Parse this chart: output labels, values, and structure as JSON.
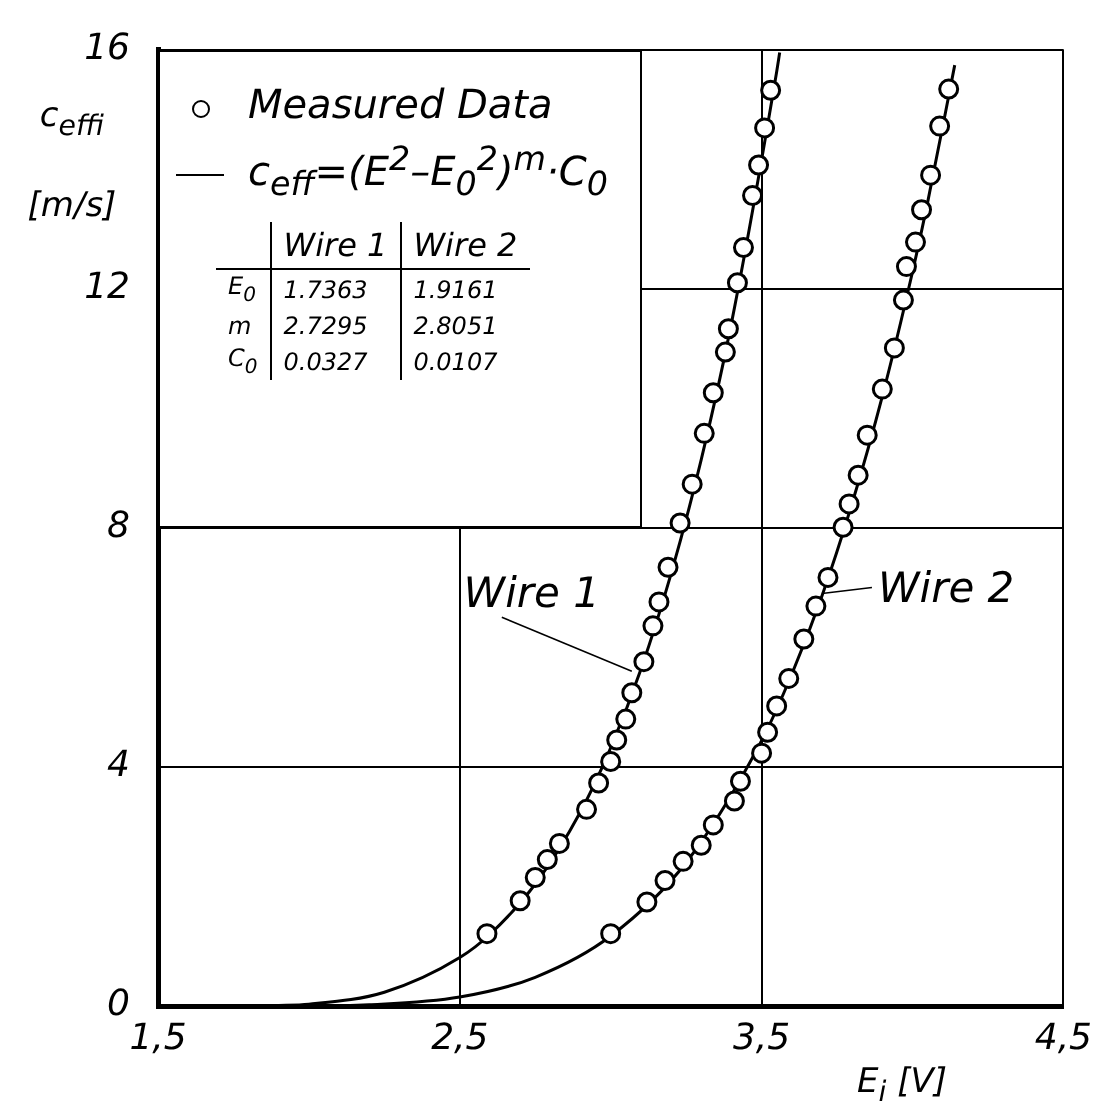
{
  "chart_data": {
    "type": "scatter",
    "xlabel": "E$_{i}$ [V]",
    "ylabel": "c$_{effi}$ [m/s]",
    "xlim": [
      1.5,
      4.5
    ],
    "xticks": [
      {
        "value": 1.5,
        "label": "1,5"
      },
      {
        "value": 2.5,
        "label": "2,5"
      },
      {
        "value": 3.5,
        "label": "3,5"
      },
      {
        "value": 4.5,
        "label": "4,5"
      }
    ],
    "ylim": [
      0,
      16
    ],
    "yticks": [
      0,
      4,
      8,
      12,
      16
    ],
    "grid": true,
    "legend": "top left",
    "line_style": "solid",
    "series": [
      {
        "name": "Measured Data",
        "color": "#000000",
        "marker": "circle",
        "x": [
          2.59,
          2.7,
          2.75,
          2.79,
          2.83,
          2.92,
          2.96,
          3.0,
          3.02,
          3.05,
          3.07,
          3.11,
          3.14,
          3.16,
          3.19,
          3.23,
          3.27,
          3.31,
          3.34,
          3.38,
          3.39,
          3.42,
          3.44,
          3.47,
          3.49,
          3.51,
          3.53
        ],
        "values": [
          1.21,
          1.76,
          2.15,
          2.45,
          2.72,
          3.29,
          3.73,
          4.09,
          4.45,
          4.8,
          5.24,
          5.76,
          6.36,
          6.76,
          7.34,
          8.08,
          8.73,
          9.58,
          10.26,
          10.94,
          11.33,
          12.1,
          12.69,
          13.56,
          14.07,
          14.69,
          15.32
        ]
      },
      {
        "color": "#000000",
        "marker": "circle",
        "x": [
          3.0,
          3.12,
          3.18,
          3.24,
          3.3,
          3.34,
          3.41,
          3.43,
          3.5,
          3.52,
          3.55,
          3.59,
          3.64,
          3.68,
          3.72,
          3.77,
          3.79,
          3.82,
          3.85,
          3.9,
          3.94,
          3.97,
          3.98,
          4.01,
          4.03,
          4.06,
          4.09,
          4.12
        ],
        "values": [
          1.21,
          1.74,
          2.1,
          2.42,
          2.69,
          3.03,
          3.43,
          3.76,
          4.23,
          4.58,
          5.02,
          5.48,
          6.14,
          6.69,
          7.17,
          8.01,
          8.4,
          8.88,
          9.55,
          10.32,
          11.01,
          11.81,
          12.37,
          12.78,
          13.32,
          13.9,
          14.72,
          15.34
        ]
      },
      {
        "type": "line",
        "name": "c$_{eff}$=(E$^{2}$–E$_{0}$$^{2}$)$^{m}$·C$_{0}$",
        "color": "#000000",
        "marker": "none",
        "x": [
          1.74,
          1.9,
          2.0,
          2.25,
          2.5,
          2.6,
          2.75,
          2.9,
          3.0,
          3.1,
          3.2,
          3.3,
          3.4,
          3.55,
          3.56
        ],
        "values": [
          0,
          0.01,
          0.03,
          0.23,
          0.81,
          1.2,
          2.04,
          3.25,
          4.32,
          5.63,
          7.23,
          9.14,
          11.42,
          15.63,
          15.95
        ]
      },
      {
        "type": "line",
        "color": "#000000",
        "marker": "none",
        "x": [
          1.92,
          2.0,
          2.2,
          2.5,
          2.75,
          3.0,
          3.25,
          3.5,
          3.6,
          3.7,
          3.8,
          3.9,
          4.0,
          4.05,
          4.14
        ],
        "values": [
          0,
          0,
          0.02,
          0.15,
          0.48,
          1.17,
          2.4,
          4.44,
          5.55,
          6.86,
          8.41,
          10.2,
          12.28,
          13.44,
          15.74
        ]
      }
    ],
    "annotations": [
      {
        "text": "Wire 1",
        "x": 3.07,
        "y": 5.6
      },
      {
        "text": "Wire 2",
        "x": 3.7,
        "y": 6.9
      },
      "Wire 1",
      "Wire 2",
      "E$_{0}$",
      "1.7363",
      "1.9161",
      "m",
      "2.7295",
      "2.8051",
      "C$_{0}$",
      "0.0327",
      "0.0107"
    ]
  }
}
